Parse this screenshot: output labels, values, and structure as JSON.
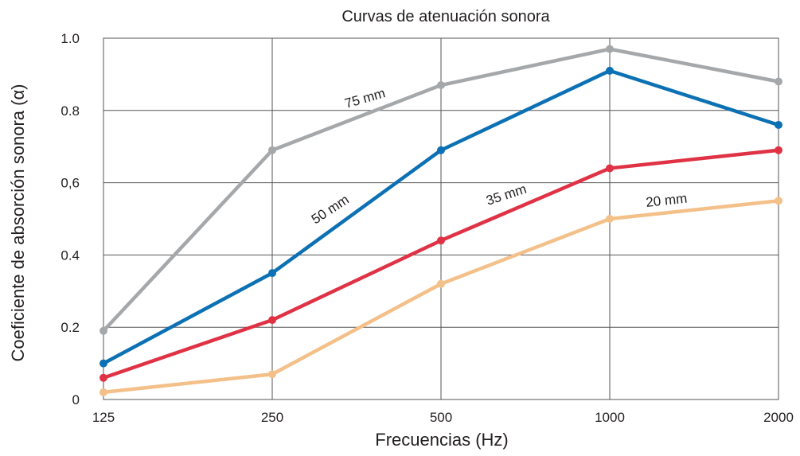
{
  "chart_data": {
    "type": "line",
    "title": "Curvas de atenuación sonora",
    "xlabel": "Frecuencias (Hz)",
    "ylabel": "Coeficiente de absorción sonora (α)",
    "categories": [
      "125",
      "250",
      "500",
      "1000",
      "2000"
    ],
    "y_tick_labels": [
      "0",
      "0.2",
      "0.4",
      "0,6",
      "0.8",
      "1.0"
    ],
    "ylim": [
      0,
      1.0
    ],
    "grid": true,
    "series": [
      {
        "name": "75 mm",
        "color": "#a5a8aa",
        "values": [
          0.19,
          0.69,
          0.87,
          0.97,
          0.88
        ]
      },
      {
        "name": "50 mm",
        "color": "#0c71b4",
        "values": [
          0.1,
          0.35,
          0.69,
          0.91,
          0.76
        ]
      },
      {
        "name": "35 mm",
        "color": "#e03245",
        "values": [
          0.06,
          0.22,
          0.44,
          0.64,
          0.69
        ]
      },
      {
        "name": "20 mm",
        "color": "#f4c089",
        "values": [
          0.02,
          0.07,
          0.32,
          0.5,
          0.55
        ]
      }
    ]
  }
}
